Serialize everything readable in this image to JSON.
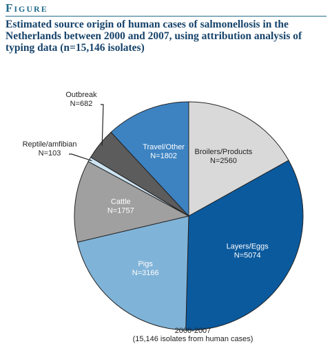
{
  "header": "Figure",
  "chart_data": {
    "type": "pie",
    "title": "Estimated source origin of human cases of salmonellosis in the Netherlands between 2000 and 2007, using attribution analysis of typing data (n=15,146 isolates)",
    "categories": [
      "Broilers/Products",
      "Layers/Eggs",
      "Pigs",
      "Cattle",
      "Reptile/amfibian",
      "Outbreak",
      "Travel/Other"
    ],
    "values": [
      2560,
      5074,
      3166,
      1757,
      103,
      682,
      1802
    ],
    "value_labels": [
      "N=2560",
      "N=5074",
      "N=3166",
      "N=1757",
      "N=103",
      "N=682",
      "N=1802"
    ],
    "colors": [
      "#d9d9d9",
      "#0b5a9e",
      "#80b3d8",
      "#a0a0a0",
      "#cde3f2",
      "#5c5c5c",
      "#3d83c2"
    ],
    "annotations": [
      "2000-2007",
      "(15,146 isolates from human cases)"
    ]
  }
}
